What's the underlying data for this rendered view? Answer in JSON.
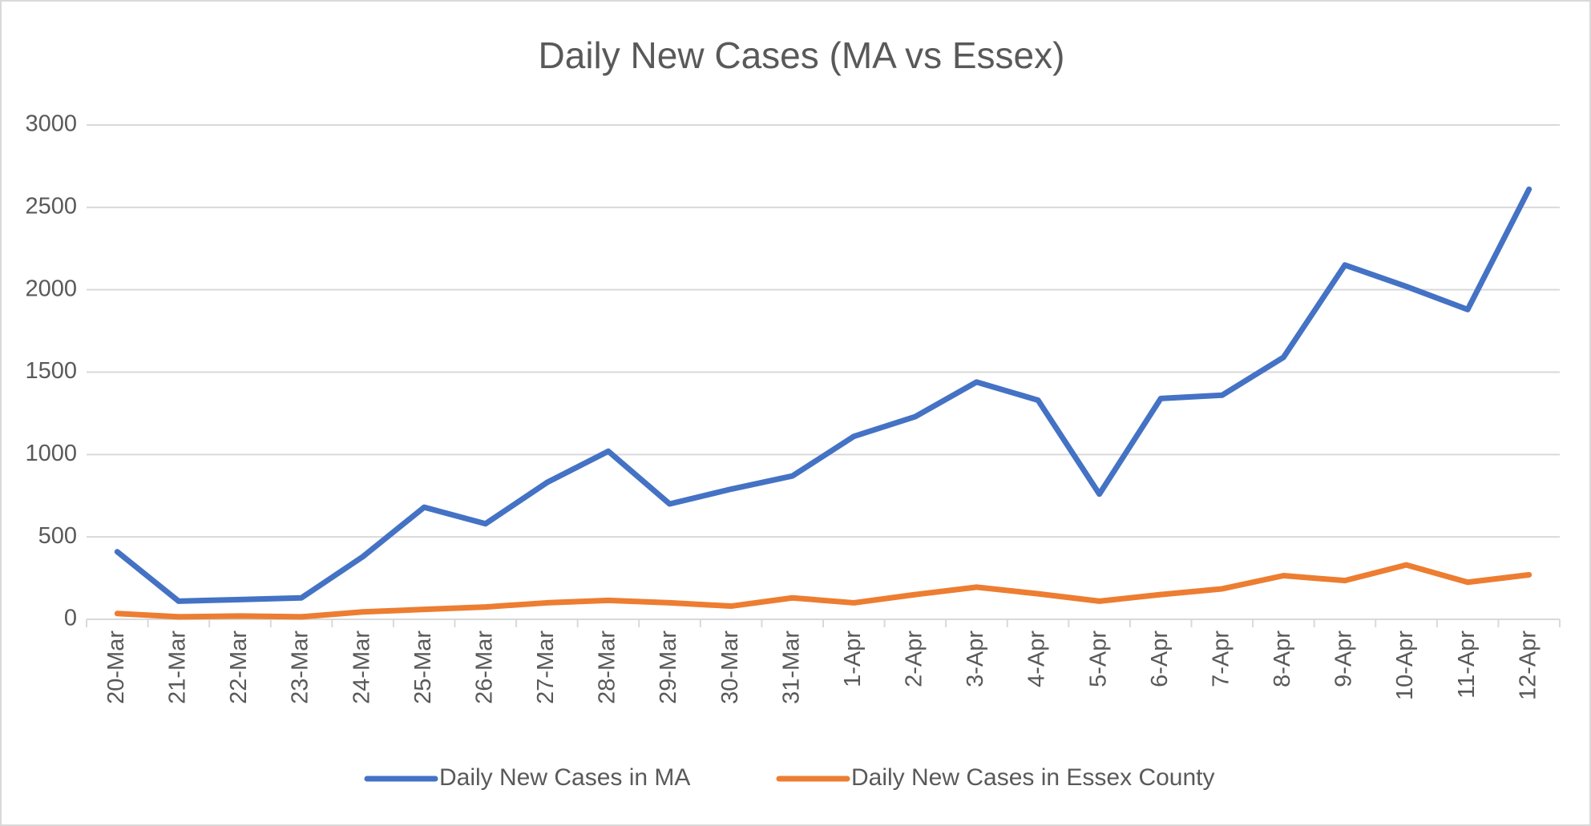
{
  "chart_data": {
    "type": "line",
    "title": "Daily New Cases (MA vs Essex)",
    "categories": [
      "20-Mar",
      "21-Mar",
      "22-Mar",
      "23-Mar",
      "24-Mar",
      "25-Mar",
      "26-Mar",
      "27-Mar",
      "28-Mar",
      "29-Mar",
      "30-Mar",
      "31-Mar",
      "1-Apr",
      "2-Apr",
      "3-Apr",
      "4-Apr",
      "5-Apr",
      "6-Apr",
      "7-Apr",
      "8-Apr",
      "9-Apr",
      "10-Apr",
      "11-Apr",
      "12-Apr"
    ],
    "series": [
      {
        "name": "Daily New Cases in MA",
        "color": "#4472c4",
        "values": [
          410,
          110,
          120,
          130,
          380,
          680,
          580,
          830,
          1020,
          700,
          790,
          870,
          1110,
          1230,
          1440,
          1330,
          760,
          1340,
          1360,
          1590,
          2150,
          2020,
          1880,
          2610
        ]
      },
      {
        "name": "Daily New Cases in Essex County",
        "color": "#ed7d31",
        "values": [
          35,
          15,
          20,
          15,
          45,
          60,
          75,
          100,
          115,
          100,
          80,
          130,
          100,
          150,
          195,
          155,
          110,
          150,
          185,
          265,
          235,
          330,
          225,
          270
        ]
      }
    ],
    "ylim": [
      0,
      3000
    ],
    "yticks": [
      0,
      500,
      1000,
      1500,
      2000,
      2500,
      3000
    ],
    "grid": true,
    "legend": "bottom"
  }
}
